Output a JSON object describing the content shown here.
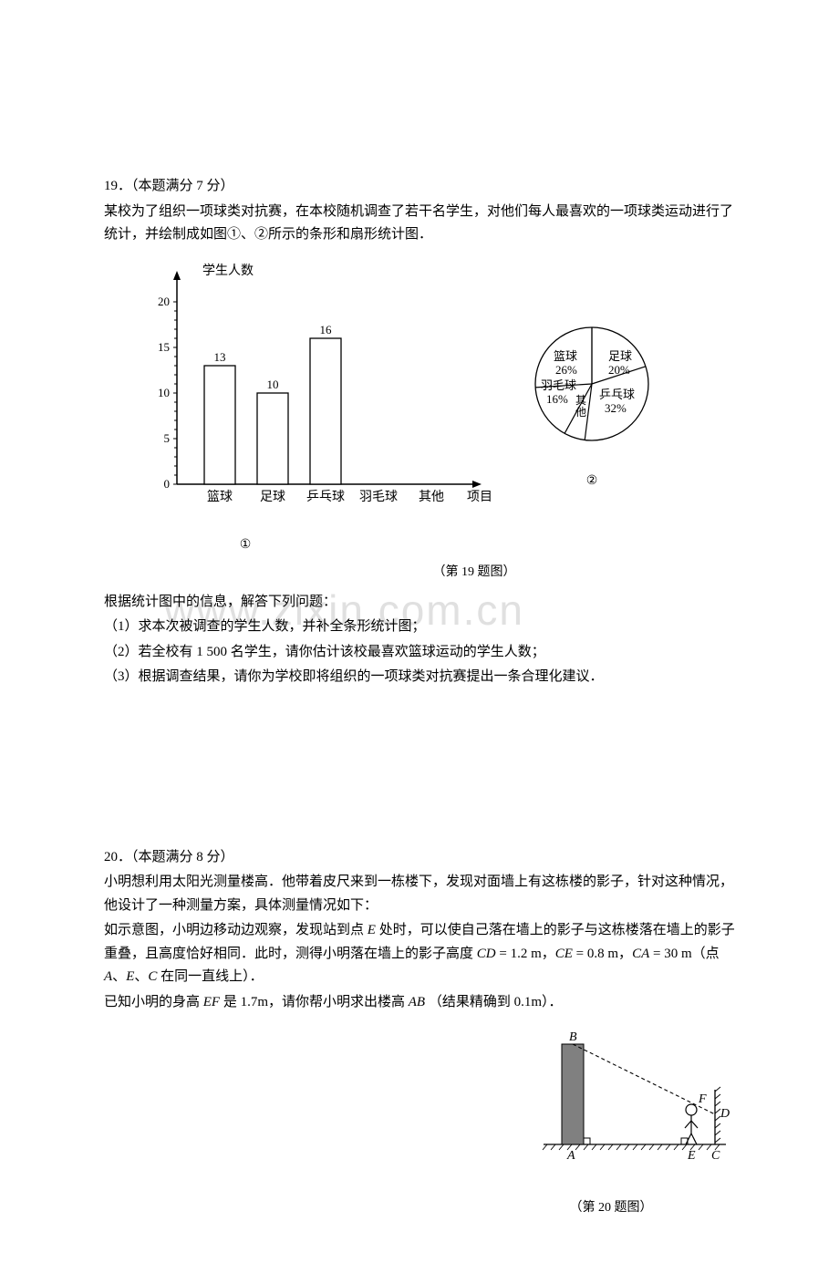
{
  "watermark_text": "www.zixin.com.cn",
  "q19": {
    "header": "19．（本题满分 7 分）",
    "p1": "某校为了组织一项球类对抗赛，在本校随机调查了若干名学生，对他们每人最喜欢的一项球类运动进行了统计，并绘制成如图①、②所示的条形和扇形统计图．",
    "sub_header": "根据统计图中的信息，解答下列问题：",
    "s1": "（1）求本次被调查的学生人数，并补全条形统计图；",
    "s2": "（2）若全校有 1 500 名学生，请你估计该校最喜欢篮球运动的学生人数；",
    "s3": "（3）根据调查结果，请你为学校即将组织的一项球类对抗赛提出一条合理化建议．",
    "bar_chart": {
      "type": "bar",
      "y_label": "学生人数",
      "x_label": "项目",
      "categories": [
        "篮球",
        "足球",
        "乒乓球",
        "羽毛球",
        "其他"
      ],
      "values": [
        13,
        10,
        16,
        null,
        null
      ],
      "bar_labels": [
        "13",
        "10",
        "16",
        "",
        ""
      ],
      "y_ticks": [
        0,
        5,
        10,
        15,
        20
      ],
      "ylim": [
        0,
        22
      ],
      "bar_fill": "#ffffff",
      "bar_stroke": "#000000",
      "axis_color": "#000000",
      "label_fontsize": 14,
      "tick_fontsize": 13,
      "chart_num": "①"
    },
    "pie_chart": {
      "type": "pie",
      "slices": [
        {
          "label": "足球",
          "pct": "20%",
          "value": 20
        },
        {
          "label": "乒乓球",
          "pct": "32%",
          "value": 32
        },
        {
          "label": "其他",
          "pct_label": "其\n他",
          "value": 6
        },
        {
          "label": "羽毛球",
          "pct": "16%",
          "value": 16
        },
        {
          "label": "篮球",
          "pct": "26%",
          "value": 26
        }
      ],
      "stroke": "#000000",
      "fill": "#ffffff",
      "label_fontsize": 13,
      "chart_num": "②"
    },
    "fig_caption": "（第 19 题图）"
  },
  "q20": {
    "header": "20．（本题满分 8 分）",
    "p1": "小明想利用太阳光测量楼高．他带着皮尺来到一栋楼下，发现对面墙上有这栋楼的影子，针对这种情况，他设计了一种测量方案，具体测量情况如下：",
    "p2_a": "如示意图，小明边移动边观察，发现站到点 ",
    "p2_E": "E",
    "p2_b": " 处时，可以使自己落在墙上的影子与这栋楼落在墙上的影子重叠，且高度恰好相同．此时，测得小明落在墙上的影子高度 ",
    "p2_CD": "CD",
    "p2_eq1": " = 1.2 m，",
    "p2_CE": "CE",
    "p2_eq2": " = 0.8 m，",
    "p2_CA": "CA",
    "p2_eq3": " = 30 m（点 ",
    "p2_A": "A",
    "p2_c": "、",
    "p2_E2": "E",
    "p2_d": "、",
    "p2_C": "C",
    "p2_e": " 在同一直线上）．",
    "p3_a": "已知小明的身高 ",
    "p3_EF": "EF",
    "p3_b": " 是 1.7m，请你帮小明求出楼高 ",
    "p3_AB": "AB",
    "p3_c": " （结果精确到 0.1m）．",
    "fig_caption": "（第 20 题图）",
    "diagram": {
      "building_fill": "#808080",
      "stroke": "#000000",
      "labels": [
        "B",
        "F",
        "D",
        "A",
        "E",
        "C"
      ]
    }
  }
}
